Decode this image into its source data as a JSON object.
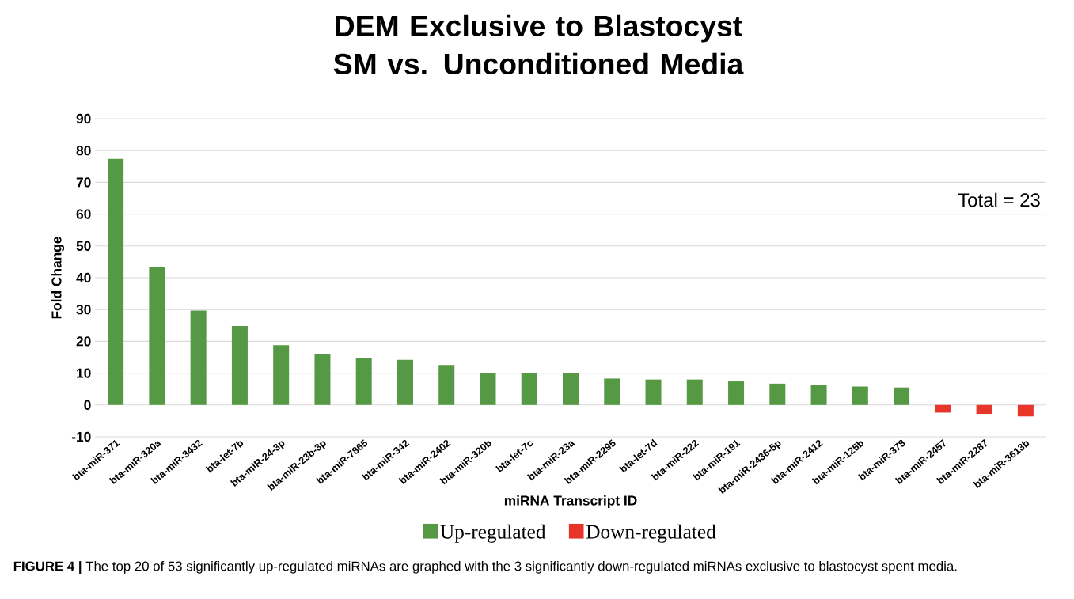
{
  "chart_data": {
    "type": "bar",
    "title": "DEM Exclusive to Blastocyst SM vs. Unconditioned Media",
    "xlabel": "miRNA Transcript ID",
    "ylabel": "Fold Change",
    "categories": [
      "bta-miR-371",
      "bta-miR-320a",
      "bta-miR-3432",
      "bta-let-7b",
      "bta-miR-24-3p",
      "bta-miR-23b-3p",
      "bta-miR-7865",
      "bta-miR-342",
      "bta-miR-2402",
      "bta-miR-320b",
      "bta-let-7c",
      "bta-miR-23a",
      "bta-miR-2295",
      "bta-let-7d",
      "bta-miR-222",
      "bta-miR-191",
      "bta-miR-2436-5p",
      "bta-miR-2412",
      "bta-miR-125b",
      "bta-miR-378",
      "bta-miR-2457",
      "bta-miR-2287",
      "bta-miR-3613b"
    ],
    "series": [
      {
        "name": "Up-regulated",
        "color": "#559944",
        "values": [
          77.4,
          43.3,
          29.7,
          24.8,
          18.8,
          15.9,
          14.8,
          14.2,
          12.6,
          10.1,
          10.1,
          9.9,
          8.3,
          8.0,
          8.0,
          7.4,
          6.7,
          6.4,
          5.8,
          5.5,
          null,
          null,
          null
        ]
      },
      {
        "name": "Down-regulated",
        "color": "#e8352a",
        "values": [
          null,
          null,
          null,
          null,
          null,
          null,
          null,
          null,
          null,
          null,
          null,
          null,
          null,
          null,
          null,
          null,
          null,
          null,
          null,
          null,
          -2.4,
          -2.8,
          -3.6
        ]
      }
    ],
    "ylim": [
      -10,
      90
    ],
    "yticks": [
      -10,
      0,
      10,
      20,
      30,
      40,
      50,
      60,
      70,
      80,
      90
    ],
    "grid": "y",
    "legend": "bottom",
    "annotations": [
      "Total = 23",
      "**FIGURE 4 |** The top 20 of 53 significantly up-regulated miRNAs are graphed with the 3 significantly down-regulated miRNAs exclusive to blastocyst spent media."
    ]
  }
}
